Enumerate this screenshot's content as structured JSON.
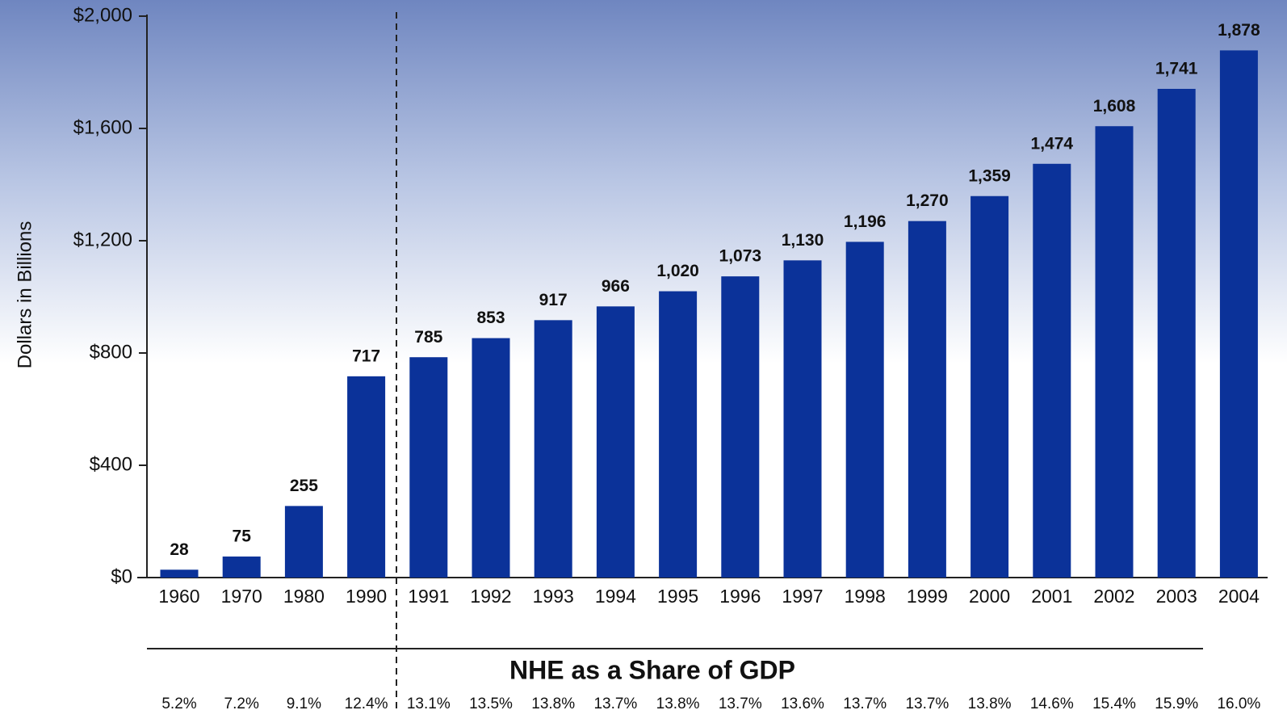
{
  "chart_data": {
    "type": "bar",
    "ylabel": "Dollars in Billions",
    "categories": [
      "1960",
      "1970",
      "1980",
      "1990",
      "1991",
      "1992",
      "1993",
      "1994",
      "1995",
      "1996",
      "1997",
      "1998",
      "1999",
      "2000",
      "2001",
      "2002",
      "2003",
      "2004"
    ],
    "values": [
      28,
      75,
      255,
      717,
      785,
      853,
      917,
      966,
      1020,
      1073,
      1130,
      1196,
      1270,
      1359,
      1474,
      1608,
      1741,
      1878
    ],
    "value_labels": [
      "28",
      "75",
      "255",
      "717",
      "785",
      "853",
      "917",
      "966",
      "1,020",
      "1,073",
      "1,130",
      "1,196",
      "1,270",
      "1,359",
      "1,474",
      "1,608",
      "1,741",
      "1,878"
    ],
    "color": "#0b3299",
    "ylim": [
      0,
      2000
    ],
    "yticks": [
      {
        "value": 0,
        "label": "$0"
      },
      {
        "value": 400,
        "label": "$400"
      },
      {
        "value": 800,
        "label": "$800"
      },
      {
        "value": 1200,
        "label": "$1,200"
      },
      {
        "value": 1600,
        "label": "$1,600"
      },
      {
        "value": 2000,
        "label": "$2,000"
      }
    ],
    "gdp_share": {
      "title": "NHE as a Share of GDP",
      "labels": [
        "5.2%",
        "7.2%",
        "9.1%",
        "12.4%",
        "13.1%",
        "13.5%",
        "13.8%",
        "13.7%",
        "13.8%",
        "13.7%",
        "13.6%",
        "13.7%",
        "13.7%",
        "13.8%",
        "14.6%",
        "15.4%",
        "15.9%",
        "16.0%"
      ]
    }
  }
}
